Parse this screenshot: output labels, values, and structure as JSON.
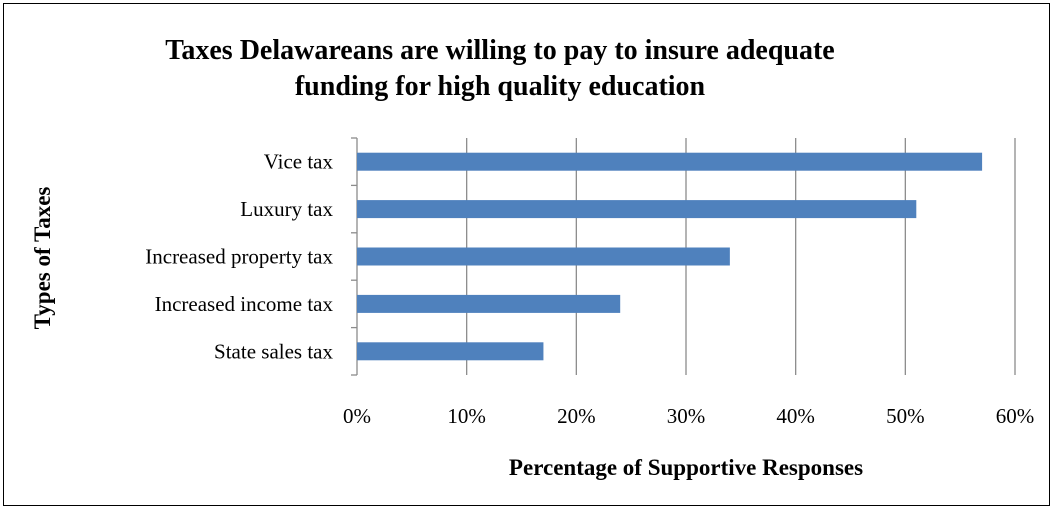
{
  "chart_data": {
    "type": "bar",
    "orientation": "horizontal",
    "title_lines": [
      "Taxes Delawareans are willing to pay to insure adequate",
      "funding for high quality education"
    ],
    "xlabel": "Percentage of Supportive Responses",
    "ylabel": "Types of Taxes",
    "categories": [
      "Vice tax",
      "Luxury tax",
      "Increased property tax",
      "Increased income tax",
      "State sales tax"
    ],
    "values": [
      57,
      51,
      34,
      24,
      17
    ],
    "xlim": [
      0,
      60
    ],
    "xticks": [
      "0%",
      "10%",
      "20%",
      "30%",
      "40%",
      "50%",
      "60%"
    ],
    "grid": "vertical",
    "legend": "none",
    "bar_color": "#4f81bd",
    "grid_color": "#8c8c8c"
  }
}
